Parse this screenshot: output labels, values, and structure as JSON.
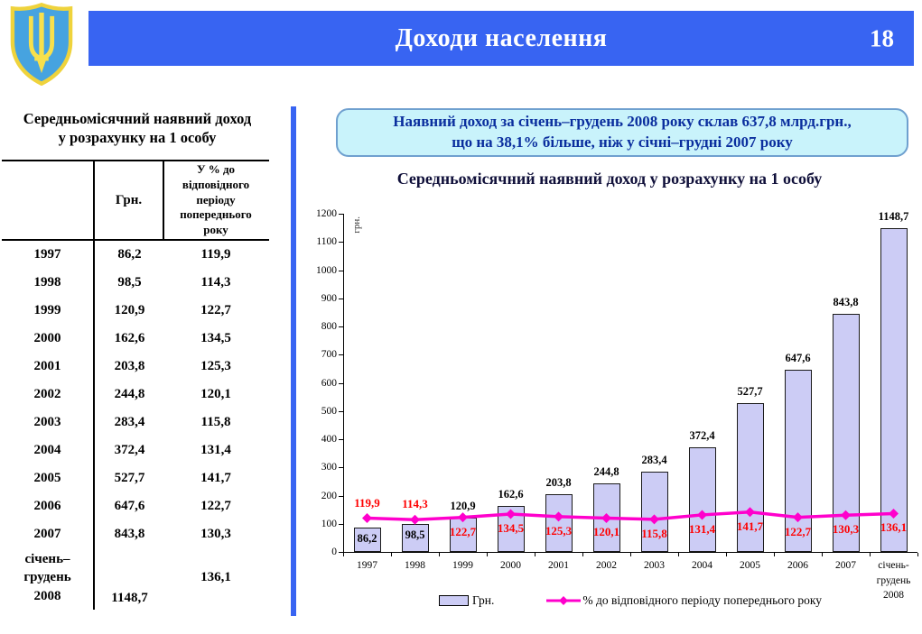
{
  "header": {
    "title": "Доходи населення",
    "page_number": "18",
    "bar_color": "#3864F2"
  },
  "logo": {
    "name": "ukraine-coat-of-arms",
    "shield_color": "#46A3E0",
    "trident_color": "#F8E04B"
  },
  "left_panel": {
    "title": "Середньомісячний наявний доход\nу розрахунку на 1 особу",
    "table": {
      "columns": [
        "",
        "Грн.",
        "У % до відповідного періоду попереднього року"
      ],
      "rows": [
        [
          "1997",
          "86,2",
          "119,9"
        ],
        [
          "1998",
          "98,5",
          "114,3"
        ],
        [
          "1999",
          "120,9",
          "122,7"
        ],
        [
          "2000",
          "162,6",
          "134,5"
        ],
        [
          "2001",
          "203,8",
          "125,3"
        ],
        [
          "2002",
          "244,8",
          "120,1"
        ],
        [
          "2003",
          "283,4",
          "115,8"
        ],
        [
          "2004",
          "372,4",
          "131,4"
        ],
        [
          "2005",
          "527,7",
          "141,7"
        ],
        [
          "2006",
          "647,6",
          "122,7"
        ],
        [
          "2007",
          "843,8",
          "130,3"
        ],
        [
          "січень–\nгрудень\n2008",
          "1148,7",
          "136,1"
        ]
      ]
    }
  },
  "info_box": {
    "line1": "Наявний доход за січень–грудень 2008 року склав 637,8 млрд.грн.,",
    "line2": "що на 38,1% більше, ніж у січні–грудні 2007 року"
  },
  "chart_data": {
    "type": "bar",
    "title": "Середньомісячний наявний доход у розрахунку на 1 особу",
    "xlabel": "",
    "ylabel": "грн.",
    "ylim": [
      0,
      1200
    ],
    "ytick_step": 100,
    "grid": false,
    "legend_position": "bottom",
    "categories": [
      "1997",
      "1998",
      "1999",
      "2000",
      "2001",
      "2002",
      "2003",
      "2004",
      "2005",
      "2006",
      "2007",
      "січень-\nгрудень\n2008"
    ],
    "series": [
      {
        "name": "Грн.",
        "type": "bar",
        "color": "#CCCCF5",
        "values": [
          86.2,
          98.5,
          120.9,
          162.6,
          203.8,
          244.8,
          283.4,
          372.4,
          527.7,
          647.6,
          843.8,
          1148.7
        ],
        "labels": [
          "86,2",
          "98,5",
          "120,9",
          "162,6",
          "203,8",
          "244,8",
          "283,4",
          "372,4",
          "527,7",
          "647,6",
          "843,8",
          "1148,7"
        ]
      },
      {
        "name": "% до відповідного періоду попереднього року",
        "type": "line",
        "color": "#FF00CC",
        "label_color": "#FF0000",
        "values": [
          119.9,
          114.3,
          122.7,
          134.5,
          125.3,
          120.1,
          115.8,
          131.4,
          141.7,
          122.7,
          130.3,
          136.1
        ],
        "labels": [
          "119,9",
          "114,3",
          "122,7",
          "134,5",
          "125,3",
          "120,1",
          "115,8",
          "131,4",
          "141,7",
          "122,7",
          "130,3",
          "136,1"
        ]
      }
    ],
    "legend": [
      "Грн.",
      "% до відповідного періоду попереднього року"
    ]
  }
}
